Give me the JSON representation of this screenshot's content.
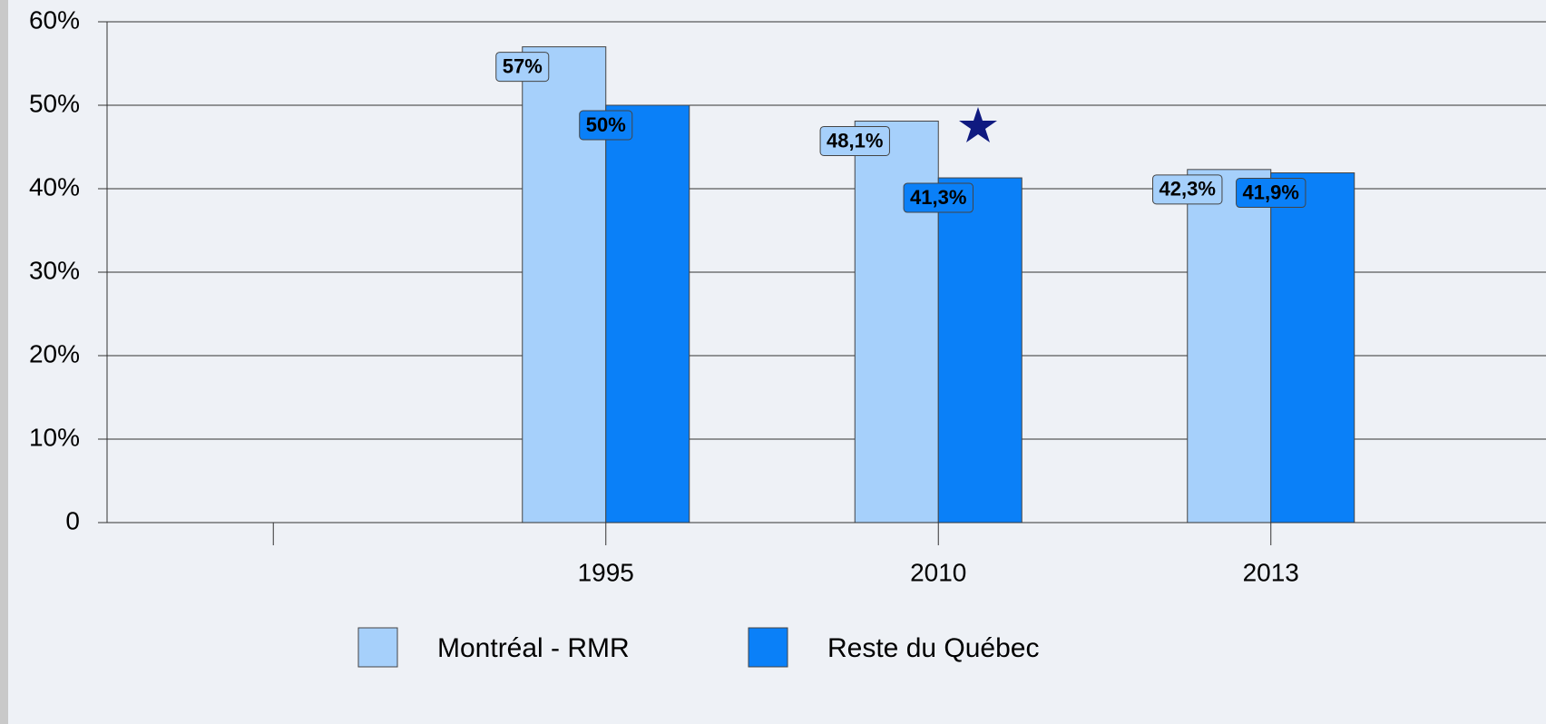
{
  "chart_data": {
    "type": "bar",
    "categories": [
      null,
      "1995",
      "2010",
      "2013"
    ],
    "series": [
      {
        "name": "Montréal - RMR",
        "color": "#a6d0fb",
        "values": [
          null,
          57,
          48.1,
          42.3
        ],
        "value_labels": [
          null,
          "57%",
          "48,1%",
          "42,3%"
        ]
      },
      {
        "name": "Reste du Québec",
        "color": "#0a80f8",
        "values": [
          null,
          50,
          41.3,
          41.9
        ],
        "value_labels": [
          null,
          "50%",
          "41,3%",
          "41,9%"
        ]
      }
    ],
    "ylim": [
      0,
      60
    ],
    "yticks": [
      0,
      {
        "value": 10,
        "label": "10%"
      },
      {
        "value": 20,
        "label": "20%"
      },
      {
        "value": 30,
        "label": "30%"
      },
      {
        "value": 40,
        "label": "40%"
      },
      {
        "value": 50,
        "label": "50%"
      },
      {
        "value": 60,
        "label": "60%"
      }
    ],
    "grid": true
  }
}
